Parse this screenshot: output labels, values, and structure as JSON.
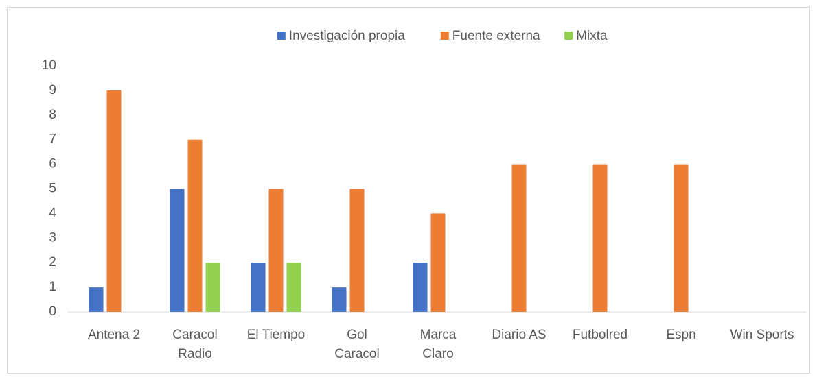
{
  "chart_data": {
    "type": "bar",
    "categories": [
      "Antena 2",
      "Caracol\nRadio",
      "El Tiempo",
      "Gol\nCaracol",
      "Marca\nClaro",
      "Diario AS",
      "Futbolred",
      "Espn",
      "Win Sports"
    ],
    "series": [
      {
        "name": "Investigación propia",
        "color": "#4472c4",
        "values": [
          1,
          5,
          2,
          1,
          2,
          0,
          0,
          0,
          0
        ]
      },
      {
        "name": "Fuente externa",
        "color": "#ed7d31",
        "values": [
          9,
          7,
          5,
          5,
          4,
          6,
          6,
          6,
          0
        ]
      },
      {
        "name": "Mixta",
        "color": "#92d050",
        "values": [
          0,
          2,
          2,
          0,
          0,
          0,
          0,
          0,
          0
        ]
      }
    ],
    "ylim": [
      0,
      10
    ],
    "yticks": [
      0,
      1,
      2,
      3,
      4,
      5,
      6,
      7,
      8,
      9,
      10
    ],
    "grid": false,
    "legend": "top"
  }
}
